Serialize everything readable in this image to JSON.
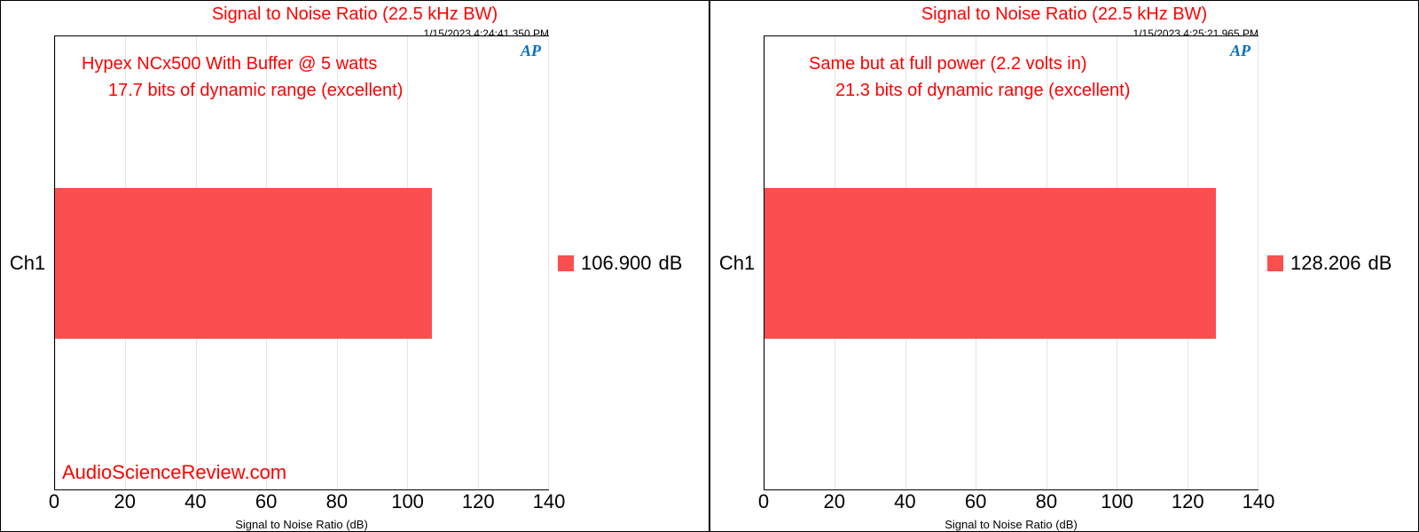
{
  "charts": [
    {
      "title": "Signal to Noise Ratio (22.5 kHz BW)",
      "timestamp": "1/15/2023 4:24:41.350 PM",
      "annot1": "Hypex NCx500 With Buffer @ 5 watts",
      "annot2": "17.7 bits of dynamic range (excellent)",
      "watermark": "AudioScienceReview.com",
      "ylabel": "Ch1",
      "value": 106.9,
      "legend_value": "106.900",
      "legend_unit": "dB",
      "xlabel": "Signal to Noise Ratio (dB)",
      "xmin": 0,
      "xmax": 140,
      "xtick_step": 20,
      "ticks": [
        "0",
        "20",
        "40",
        "60",
        "80",
        "100",
        "120",
        "140"
      ],
      "bar_color": "#fb4e4e",
      "title_color": "#ff0000",
      "annot_color": "#ff0000",
      "grid_color": "#e5e5e5",
      "background_color": "#ffffff",
      "title_fontsize": 20,
      "annot_fontsize": 20,
      "tick_fontsize": 22,
      "ap_logo": "AP"
    },
    {
      "title": "Signal to Noise Ratio (22.5 kHz BW)",
      "timestamp": "1/15/2023 4:25:21.965 PM",
      "annot1": "Same but at full power (2.2 volts in)",
      "annot2": "21.3 bits of dynamic range (excellent)",
      "watermark": "",
      "ylabel": "Ch1",
      "value": 128.206,
      "legend_value": "128.206",
      "legend_unit": "dB",
      "xlabel": "Signal to Noise Ratio (dB)",
      "xmin": 0,
      "xmax": 140,
      "xtick_step": 20,
      "ticks": [
        "0",
        "20",
        "40",
        "60",
        "80",
        "100",
        "120",
        "140"
      ],
      "bar_color": "#fb4e4e",
      "title_color": "#ff0000",
      "annot_color": "#ff0000",
      "grid_color": "#e5e5e5",
      "background_color": "#ffffff",
      "title_fontsize": 20,
      "annot_fontsize": 20,
      "tick_fontsize": 22,
      "ap_logo": "AP"
    }
  ]
}
